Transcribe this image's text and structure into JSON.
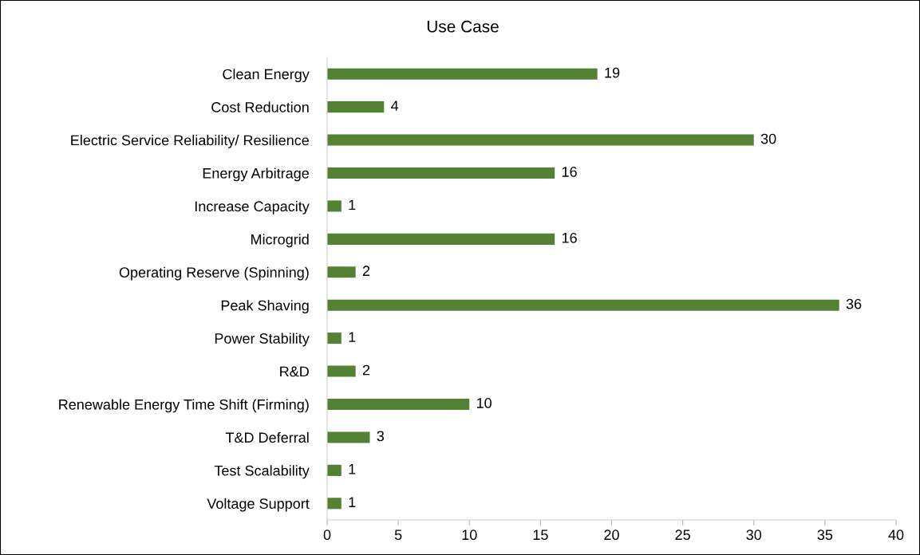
{
  "chart_data": {
    "type": "bar",
    "orientation": "horizontal",
    "title": "Use Case",
    "categories": [
      "Clean Energy",
      "Cost Reduction",
      "Electric Service Reliability/ Resilience",
      "Energy Arbitrage",
      "Increase Capacity",
      "Microgrid",
      "Operating Reserve (Spinning)",
      "Peak Shaving",
      "Power Stability",
      "R&D",
      "Renewable Energy Time Shift (Firming)",
      "T&D Deferral",
      "Test Scalability",
      "Voltage Support"
    ],
    "values": [
      19,
      4,
      30,
      16,
      1,
      16,
      2,
      36,
      1,
      2,
      10,
      3,
      1,
      1
    ],
    "color": "#548235",
    "xlim": [
      0,
      40
    ],
    "xticks": [
      0,
      5,
      10,
      15,
      20,
      25,
      30,
      35,
      40
    ],
    "data_labels": true,
    "grid": false,
    "legend": false
  }
}
